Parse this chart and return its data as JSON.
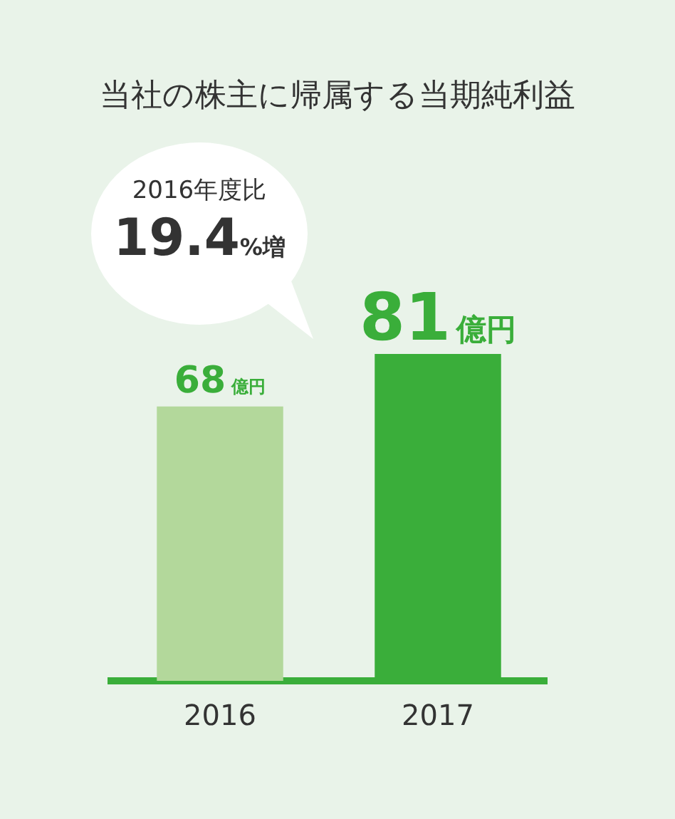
{
  "chart_data": {
    "type": "bar",
    "title": "当社の株主に帰属する当期純利益",
    "categories": [
      "2016",
      "2017"
    ],
    "values": [
      68,
      81
    ],
    "colors": [
      "#b3d89b",
      "#3aae3a"
    ],
    "value_labels": [
      "68億円",
      "81億円"
    ],
    "annotations": [
      "2016年度比",
      "19.4%増"
    ],
    "grid": false,
    "legend": false
  }
}
